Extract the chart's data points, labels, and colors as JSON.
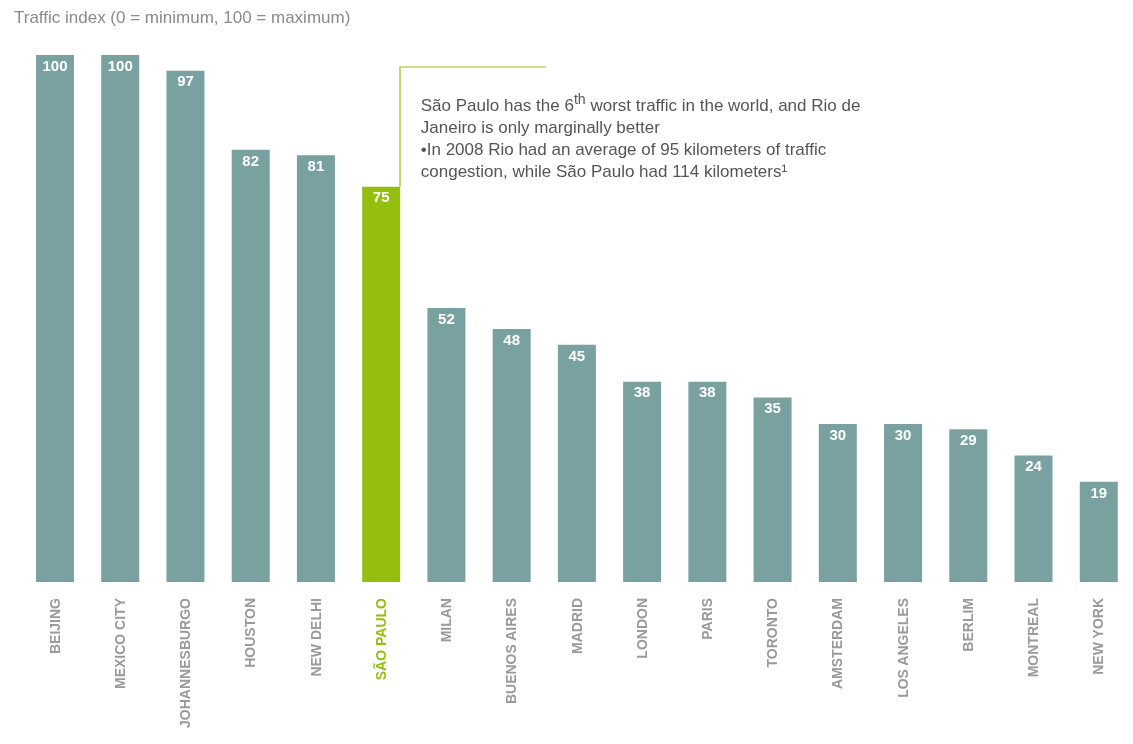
{
  "chart_data": {
    "type": "bar",
    "title": "Traffic index (0 = minimum, 100 = maximum)",
    "categories": [
      "BEIJING",
      "MEXICO CITY",
      "JOHANNESBURGO",
      "HOUSTON",
      "NEW DELHI",
      "SÃO PAULO",
      "MILAN",
      "BUENOS AIRES",
      "MADRID",
      "LONDON",
      "PARIS",
      "TORONTO",
      "AMSTERDAM",
      "LOS ANGELES",
      "BERLIM",
      "MONTREAL",
      "NEW YORK"
    ],
    "values": [
      100,
      100,
      97,
      82,
      81,
      75,
      52,
      48,
      45,
      38,
      38,
      35,
      30,
      30,
      29,
      24,
      19
    ],
    "colors": [
      "#78a1a0",
      "#78a1a0",
      "#78a1a0",
      "#78a1a0",
      "#78a1a0",
      "#95bf0f",
      "#78a1a0",
      "#78a1a0",
      "#78a1a0",
      "#78a1a0",
      "#78a1a0",
      "#78a1a0",
      "#78a1a0",
      "#78a1a0",
      "#78a1a0",
      "#78a1a0",
      "#78a1a0"
    ],
    "data_labels": true,
    "grid": false,
    "legend": false,
    "annotations": [
      "São Paulo has the 6$^{th}$ worst traffic in the world, and Rio de Janeiro is only marginally better",
      "•In 2008 Rio had an average of 95 kilometers of traffic congestion, while São Paulo had 114 kilometers¹"
    ]
  }
}
